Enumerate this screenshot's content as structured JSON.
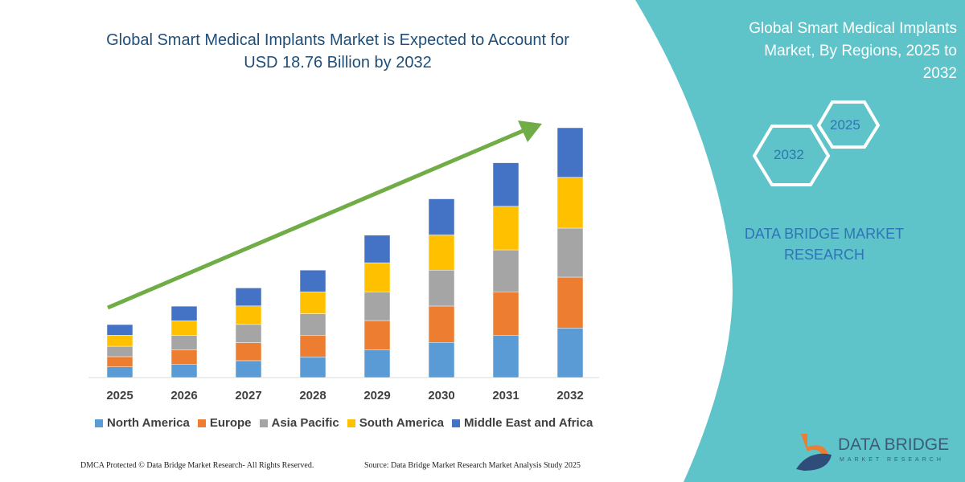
{
  "header": {
    "title": "Global Smart Medical Implants Market is Expected to Account for USD 18.76 Billion by 2032"
  },
  "side_panel": {
    "title": "Global Smart Medical Implants Market, By Regions, 2025 to 2032",
    "hex_years": [
      "2025",
      "2032"
    ],
    "brand": "DATA BRIDGE MARKET RESEARCH",
    "logo_name": "DATA BRIDGE",
    "logo_sub": "MARKET RESEARCH",
    "background_color": "#5fc4c9"
  },
  "footer": {
    "copyright": "DMCA Protected © Data Bridge Market Research-  All Rights Reserved.",
    "source": "Source: Data Bridge Market Research  Market Analysis Study 2025"
  },
  "chart_data": {
    "type": "bar",
    "stacked": true,
    "title": "Global Smart Medical Implants Market is Expected to Account for USD 18.76 Billion by 2032",
    "unit": "USD Billion",
    "categories": [
      "2025",
      "2026",
      "2027",
      "2028",
      "2029",
      "2030",
      "2031",
      "2032"
    ],
    "legend_position": "bottom",
    "grid": false,
    "trend_arrow_color": "#70ad47",
    "series": [
      {
        "name": "North America",
        "color": "#5b9bd5",
        "values": [
          0.8,
          0.98,
          1.27,
          1.55,
          2.09,
          2.64,
          3.18,
          3.72
        ]
      },
      {
        "name": "Europe",
        "color": "#ed7d31",
        "values": [
          0.77,
          1.09,
          1.35,
          1.63,
          2.19,
          2.73,
          3.26,
          3.82
        ]
      },
      {
        "name": "Asia Pacific",
        "color": "#a5a5a5",
        "values": [
          0.78,
          1.09,
          1.37,
          1.61,
          2.13,
          2.7,
          3.15,
          3.68
        ]
      },
      {
        "name": "South America",
        "color": "#ffc000",
        "values": [
          0.83,
          1.1,
          1.39,
          1.65,
          2.21,
          2.64,
          3.27,
          3.82
        ]
      },
      {
        "name": "Middle East and Africa",
        "color": "#4472c4",
        "values": [
          0.8,
          1.1,
          1.35,
          1.63,
          2.07,
          2.71,
          3.27,
          3.72
        ]
      }
    ]
  }
}
